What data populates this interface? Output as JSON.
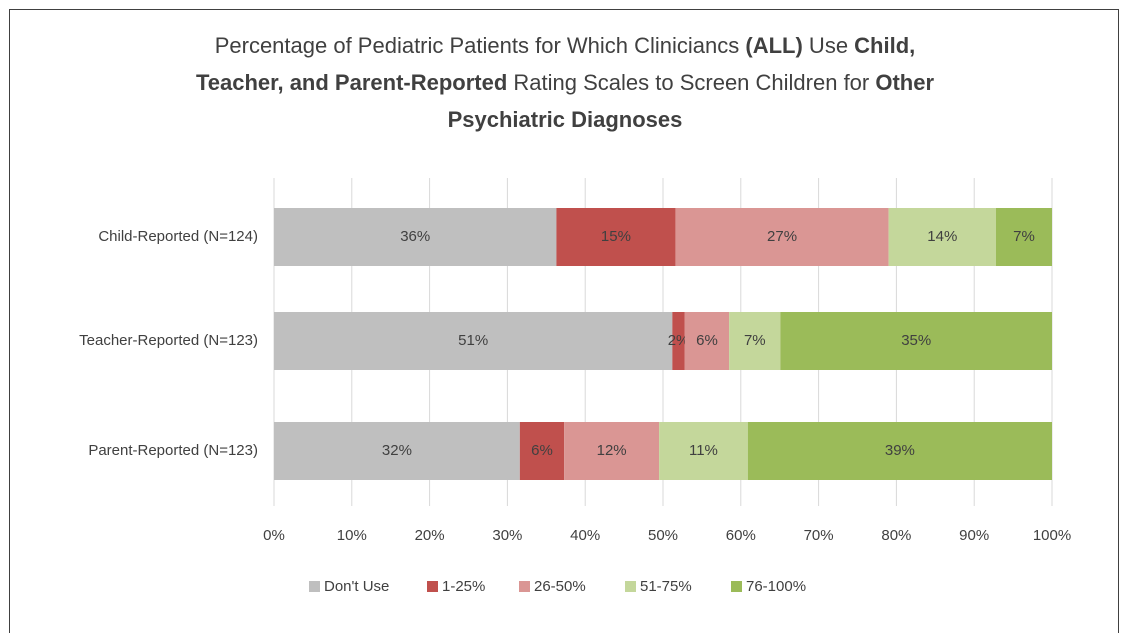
{
  "chart_data": {
    "type": "stacked_barh",
    "title": [
      [
        {
          "text": "Percentage of Pediatric Patients for Which Cliniciancs ",
          "bold": false
        },
        {
          "text": "(ALL)",
          "bold": true
        },
        {
          "text": " Use ",
          "bold": false
        },
        {
          "text": "Child,",
          "bold": true
        }
      ],
      [
        {
          "text": "Teacher, and Parent-Reported",
          "bold": true
        },
        {
          "text": " Rating Scales to Screen Children for ",
          "bold": false
        },
        {
          "text": "Other",
          "bold": true
        }
      ],
      [
        {
          "text": "Psychiatric Diagnoses",
          "bold": true
        }
      ]
    ],
    "categories": [
      "Child-Reported (N=124)",
      "Teacher-Reported (N=123)",
      "Parent-Reported (N=123)"
    ],
    "series": [
      {
        "name": "Don't Use",
        "color": "#bfbfbf",
        "values": [
          36.3,
          51.2,
          31.6
        ],
        "value_labels": [
          "36%",
          "51%",
          "32%"
        ]
      },
      {
        "name": "1-25%",
        "color": "#c0504d",
        "values": [
          15.3,
          1.6,
          5.7
        ],
        "value_labels": [
          "15%",
          "2%",
          "6%"
        ]
      },
      {
        "name": "26-50%",
        "color": "#da9694",
        "values": [
          27.4,
          5.7,
          12.2
        ],
        "value_labels": [
          "27%",
          "6%",
          "12%"
        ]
      },
      {
        "name": "51-75%",
        "color": "#c4d79b",
        "values": [
          13.8,
          6.6,
          11.4
        ],
        "value_labels": [
          "14%",
          "7%",
          "11%"
        ]
      },
      {
        "name": "76-100%",
        "color": "#9bbb59",
        "values": [
          7.2,
          34.9,
          39.1
        ],
        "value_labels": [
          "7%",
          "35%",
          "39%"
        ]
      }
    ],
    "xlim": [
      0,
      100
    ],
    "xticks": [
      {
        "value": 0,
        "label": "0%"
      },
      {
        "value": 10,
        "label": "10%"
      },
      {
        "value": 20,
        "label": "20%"
      },
      {
        "value": 30,
        "label": "30%"
      },
      {
        "value": 40,
        "label": "40%"
      },
      {
        "value": 50,
        "label": "50%"
      },
      {
        "value": 60,
        "label": "60%"
      },
      {
        "value": 70,
        "label": "70%"
      },
      {
        "value": 80,
        "label": "80%"
      },
      {
        "value": 90,
        "label": "90%"
      },
      {
        "value": 100,
        "label": "100%"
      }
    ],
    "grid": true,
    "legend": "bottom"
  }
}
